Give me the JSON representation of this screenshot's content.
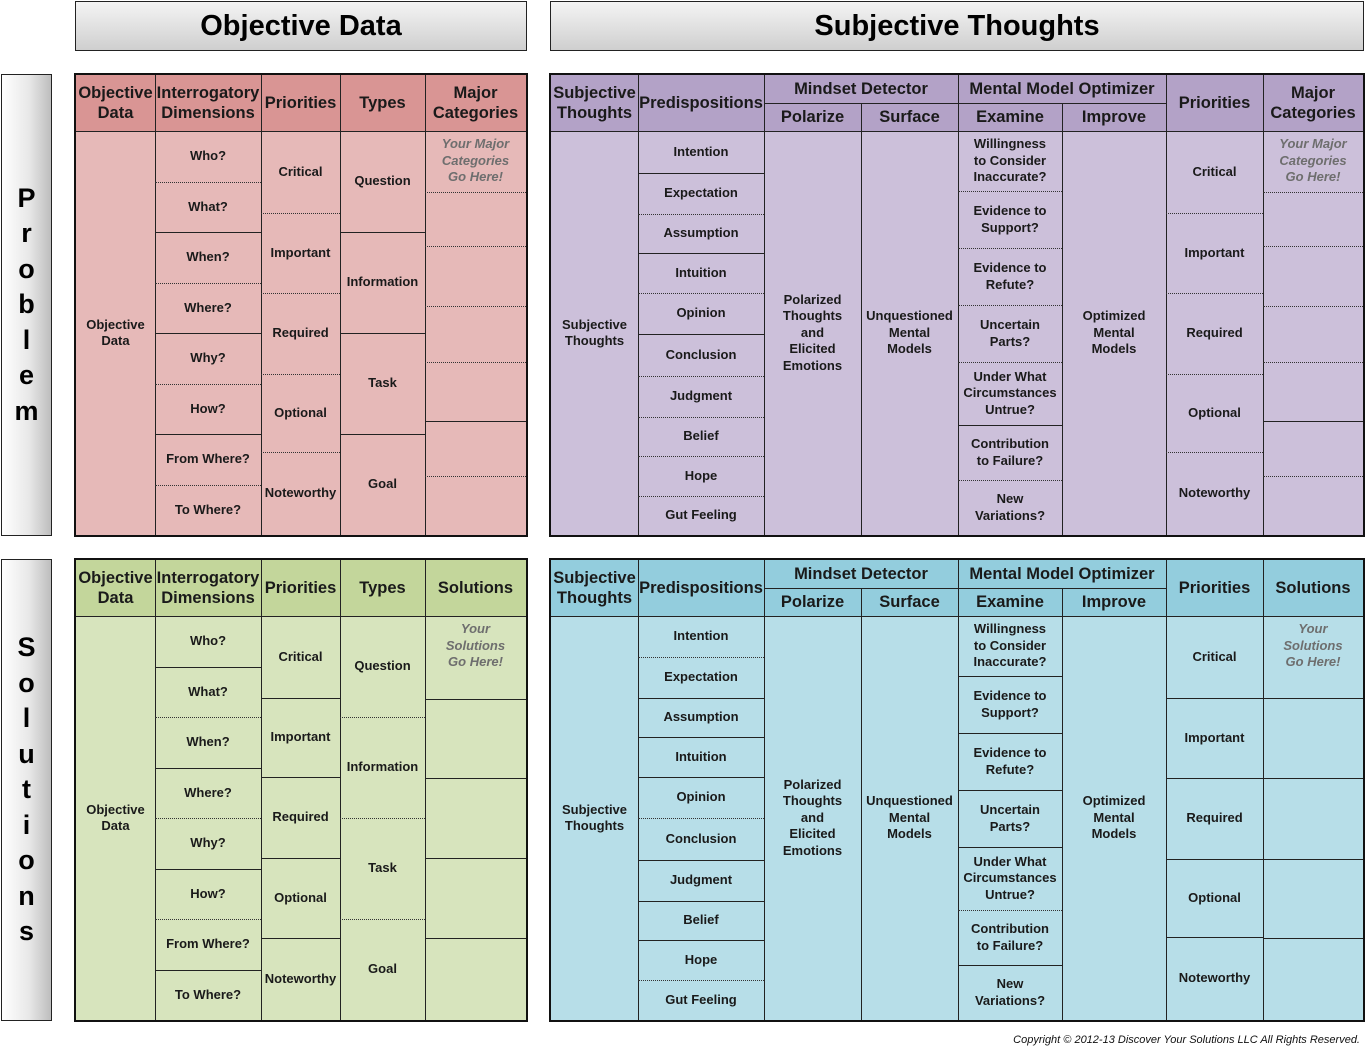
{
  "banners": {
    "objective": "Objective Data",
    "subjective": "Subjective Thoughts"
  },
  "side_labels": {
    "problem": [
      "P",
      "r",
      "o",
      "b",
      "l",
      "e",
      "m"
    ],
    "solutions": [
      "S",
      "o",
      "l",
      "u",
      "t",
      "i",
      "o",
      "n",
      "s"
    ]
  },
  "colors": {
    "problem_objective_header": "#d99594",
    "problem_objective_body": "#e6b9b8",
    "problem_subjective_header": "#b3a2c7",
    "problem_subjective_body": "#ccc0da",
    "solutions_objective_header": "#c3d69b",
    "solutions_objective_body": "#d7e4bd",
    "solutions_subjective_header": "#93cddd",
    "solutions_subjective_body": "#b7dee8"
  },
  "objective_table": {
    "headers": {
      "objective_data": "Objective\nData",
      "interrogatory": "Interrogatory\nDimensions",
      "priorities": "Priorities",
      "types": "Types",
      "problem_last": "Major\nCategories",
      "solutions_last": "Solutions"
    },
    "objective_data_cell": "Objective\nData",
    "interrogatory": [
      "Who?",
      "What?",
      "When?",
      "Where?",
      "Why?",
      "How?",
      "From Where?",
      "To Where?"
    ],
    "priorities": [
      "Critical",
      "Important",
      "Required",
      "Optional",
      "Noteworthy"
    ],
    "types": [
      "Question",
      "Information",
      "Task",
      "Goal"
    ],
    "problem_placeholder": "Your Major\nCategories\nGo Here!",
    "solutions_placeholder": "Your\nSolutions\nGo Here!"
  },
  "subjective_table": {
    "headers": {
      "subjective_thoughts": "Subjective\nThoughts",
      "predispositions": "Predispositions",
      "mindset_detector": "Mindset Detector",
      "polarize": "Polarize",
      "surface": "Surface",
      "mental_model_optimizer": "Mental Model Optimizer",
      "examine": "Examine",
      "improve": "Improve",
      "priorities": "Priorities",
      "problem_last": "Major\nCategories",
      "solutions_last": "Solutions"
    },
    "subjective_thoughts_cell": "Subjective\nThoughts",
    "predispositions": [
      "Intention",
      "Expectation",
      "Assumption",
      "Intuition",
      "Opinion",
      "Conclusion",
      "Judgment",
      "Belief",
      "Hope",
      "Gut Feeling"
    ],
    "polarize_cell": "Polarized\nThoughts\nand\nElicited\nEmotions",
    "surface_cell": "Unquestioned\nMental\nModels",
    "examine": [
      "Willingness\nto Consider\nInaccurate?",
      "Evidence to\nSupport?",
      "Evidence to\nRefute?",
      "Uncertain\nParts?",
      "Under What\nCircumstances\nUntrue?",
      "Contribution\nto Failure?",
      "New\nVariations?"
    ],
    "improve_cell": "Optimized\nMental\nModels",
    "priorities": [
      "Critical",
      "Important",
      "Required",
      "Optional",
      "Noteworthy"
    ],
    "problem_placeholder": "Your Major\nCategories\nGo Here!",
    "solutions_placeholder": "Your\nSolutions\nGo Here!"
  },
  "footer": {
    "copyright": "Copyright © 2012-13 Discover Your Solutions LLC All Rights Reserved."
  }
}
